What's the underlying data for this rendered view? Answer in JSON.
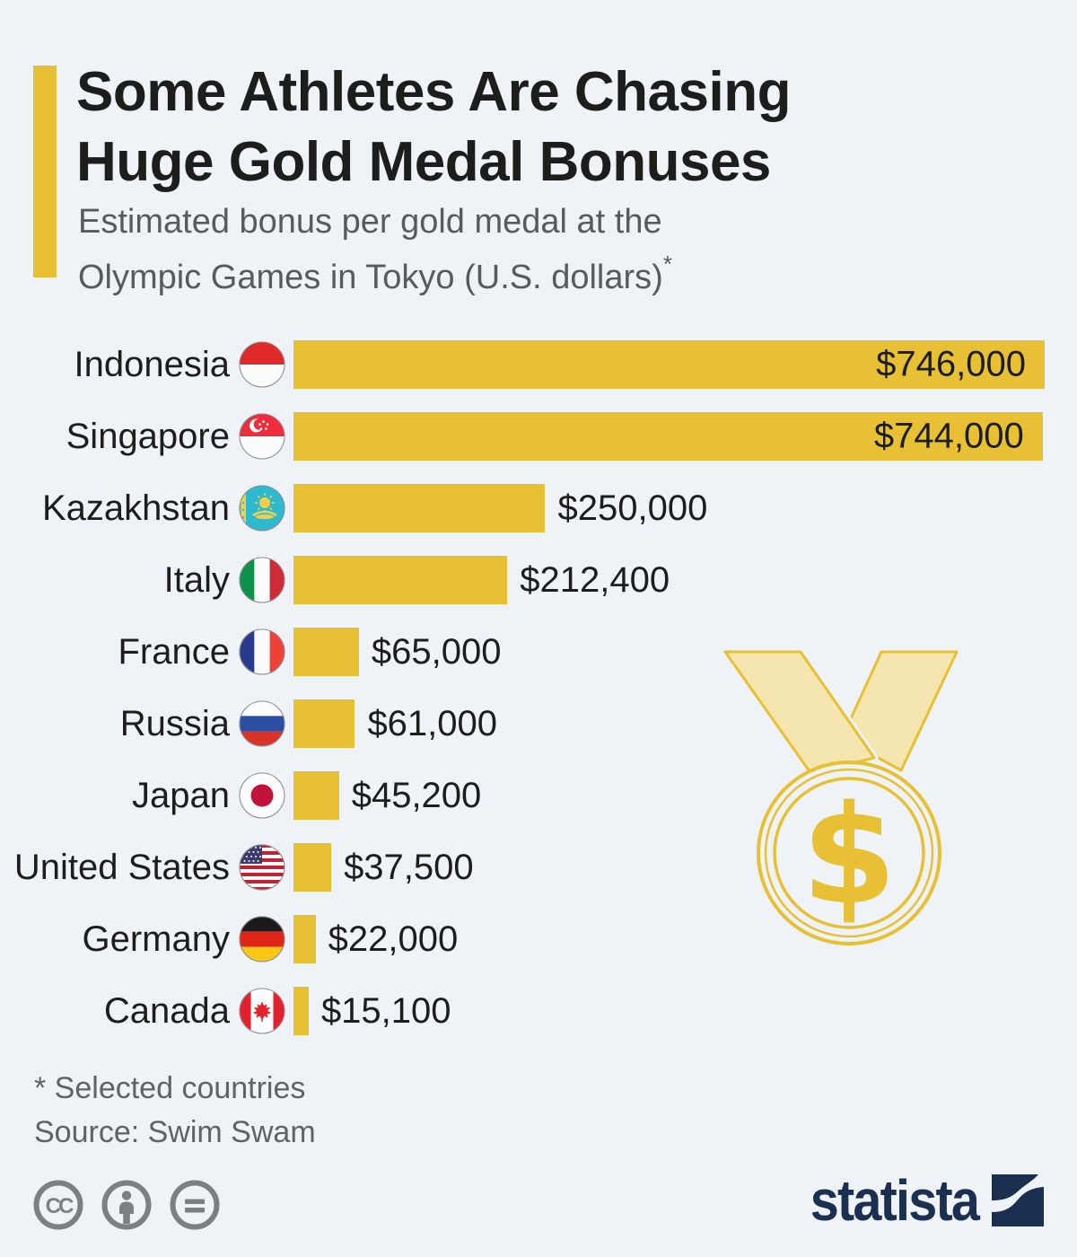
{
  "header": {
    "title_line1": "Some Athletes Are Chasing",
    "title_line2": "Huge Gold Medal Bonuses",
    "subtitle_line1": "Estimated bonus per gold medal at the",
    "subtitle_line2": "Olympic Games in Tokyo (U.S. dollars)",
    "footnote_marker": "*"
  },
  "chart_data": {
    "type": "bar",
    "orientation": "horizontal",
    "title": "Some Athletes Are Chasing Huge Gold Medal Bonuses",
    "subtitle": "Estimated bonus per gold medal at the Olympic Games in Tokyo (U.S. dollars)*",
    "unit": "U.S. dollars",
    "xlim": [
      0,
      746000
    ],
    "bar_color": "#E7C133",
    "rows": [
      {
        "label": "Indonesia",
        "flag": "indonesia",
        "value": 746000,
        "value_label": "$746,000"
      },
      {
        "label": "Singapore",
        "flag": "singapore",
        "value": 744000,
        "value_label": "$744,000"
      },
      {
        "label": "Kazakhstan",
        "flag": "kazakhstan",
        "value": 250000,
        "value_label": "$250,000"
      },
      {
        "label": "Italy",
        "flag": "italy",
        "value": 212400,
        "value_label": "$212,400"
      },
      {
        "label": "France",
        "flag": "france",
        "value": 65000,
        "value_label": "$65,000"
      },
      {
        "label": "Russia",
        "flag": "russia",
        "value": 61000,
        "value_label": "$61,000"
      },
      {
        "label": "Japan",
        "flag": "japan",
        "value": 45200,
        "value_label": "$45,200"
      },
      {
        "label": "United States",
        "flag": "united-states",
        "value": 37500,
        "value_label": "$37,500"
      },
      {
        "label": "Germany",
        "flag": "germany",
        "value": 22000,
        "value_label": "$22,000"
      },
      {
        "label": "Canada",
        "flag": "canada",
        "value": 15100,
        "value_label": "$15,100"
      }
    ]
  },
  "medal": {
    "symbol": "$"
  },
  "footer": {
    "footnote": "* Selected countries",
    "source": "Source: Swim Swam"
  },
  "branding": {
    "logo_text": "statista",
    "license_icons": [
      "cc-icon",
      "attribution-icon",
      "no-derivatives-icon"
    ]
  },
  "colors": {
    "gold": "#E7C133",
    "pale_gold": "#F5E5AF",
    "background": "#EFF3F8",
    "navy": "#1B3050",
    "text": "#1D1D1B",
    "subtitle_gray": "#595A5E"
  }
}
